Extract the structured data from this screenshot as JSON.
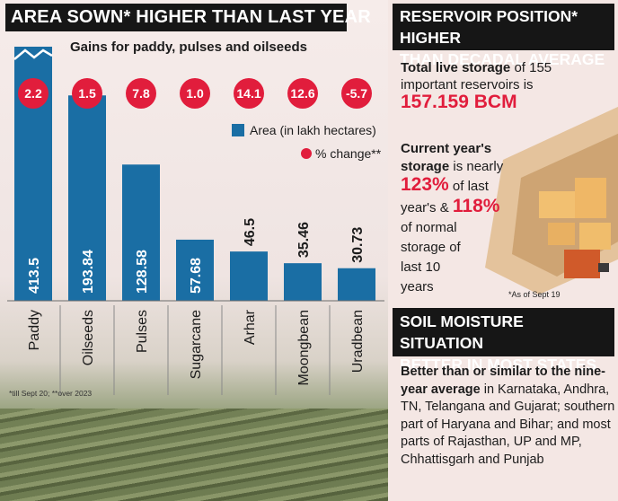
{
  "left_panel": {
    "title": "AREA SOWN* HIGHER THAN LAST YEAR",
    "subtitle": "Gains for paddy, pulses and oilseeds",
    "legend_area": "Area (in lakh hectares)",
    "legend_pct": "% change**",
    "footnote": "*till Sept 20; **over 2023"
  },
  "chart_data": {
    "type": "bar",
    "title": "AREA SOWN* HIGHER THAN LAST YEAR",
    "subtitle": "Gains for paddy, pulses and oilseeds",
    "categories": [
      "Paddy",
      "Oilseeds",
      "Pulses",
      "Sugarcane",
      "Arhar",
      "Moongbean",
      "Uradbean"
    ],
    "series": [
      {
        "name": "Area (in lakh hectares)",
        "values": [
          413.5,
          193.84,
          128.58,
          57.68,
          46.5,
          35.46,
          30.73
        ],
        "labels": [
          "413.5",
          "193.84",
          "128.58",
          "57.68",
          "46.5",
          "35.46",
          "30.73"
        ]
      },
      {
        "name": "% change**",
        "values": [
          2.2,
          1.5,
          7.8,
          1.0,
          14.1,
          12.6,
          -5.7
        ],
        "labels": [
          "2.2",
          "1.5",
          "7.8",
          "1.0",
          "14.1",
          "12.6",
          "-5.7"
        ]
      }
    ],
    "bar_color": "#1a6ea4",
    "marker_color": "#e11d3c",
    "axis_break": "Paddy"
  },
  "right_panel": {
    "reservoir_title_1": "RESERVOIR POSITION* HIGHER",
    "reservoir_title_2": "THAN DECADAL AVERAGE",
    "storage_lead": "Total live storage",
    "storage_mid": "of 155",
    "storage_line2": "important reservoirs is",
    "storage_value": "157.159 BCM",
    "current_1": "Current year's",
    "current_2a": "storage",
    "current_2b": "is nearly",
    "pct_123": "123%",
    "current_3": "of last",
    "current_4a": "year's &",
    "pct_118": "118%",
    "current_5": "of normal",
    "current_6": "storage of",
    "current_7": "last 10",
    "current_8": "years",
    "as_of": "*As of Sept 19",
    "soil_title_1": "SOIL MOISTURE SITUATION",
    "soil_title_2": "BETTER IN MOST STATES",
    "soil_bold": "Better than or similar to the nine-year average",
    "soil_rest": "in Karnataka, Andhra, TN, Telangana and Gujarat; southern part of Haryana and Bihar; and most parts of Rajasthan, UP and MP, Chhattisgarh and Punjab"
  }
}
